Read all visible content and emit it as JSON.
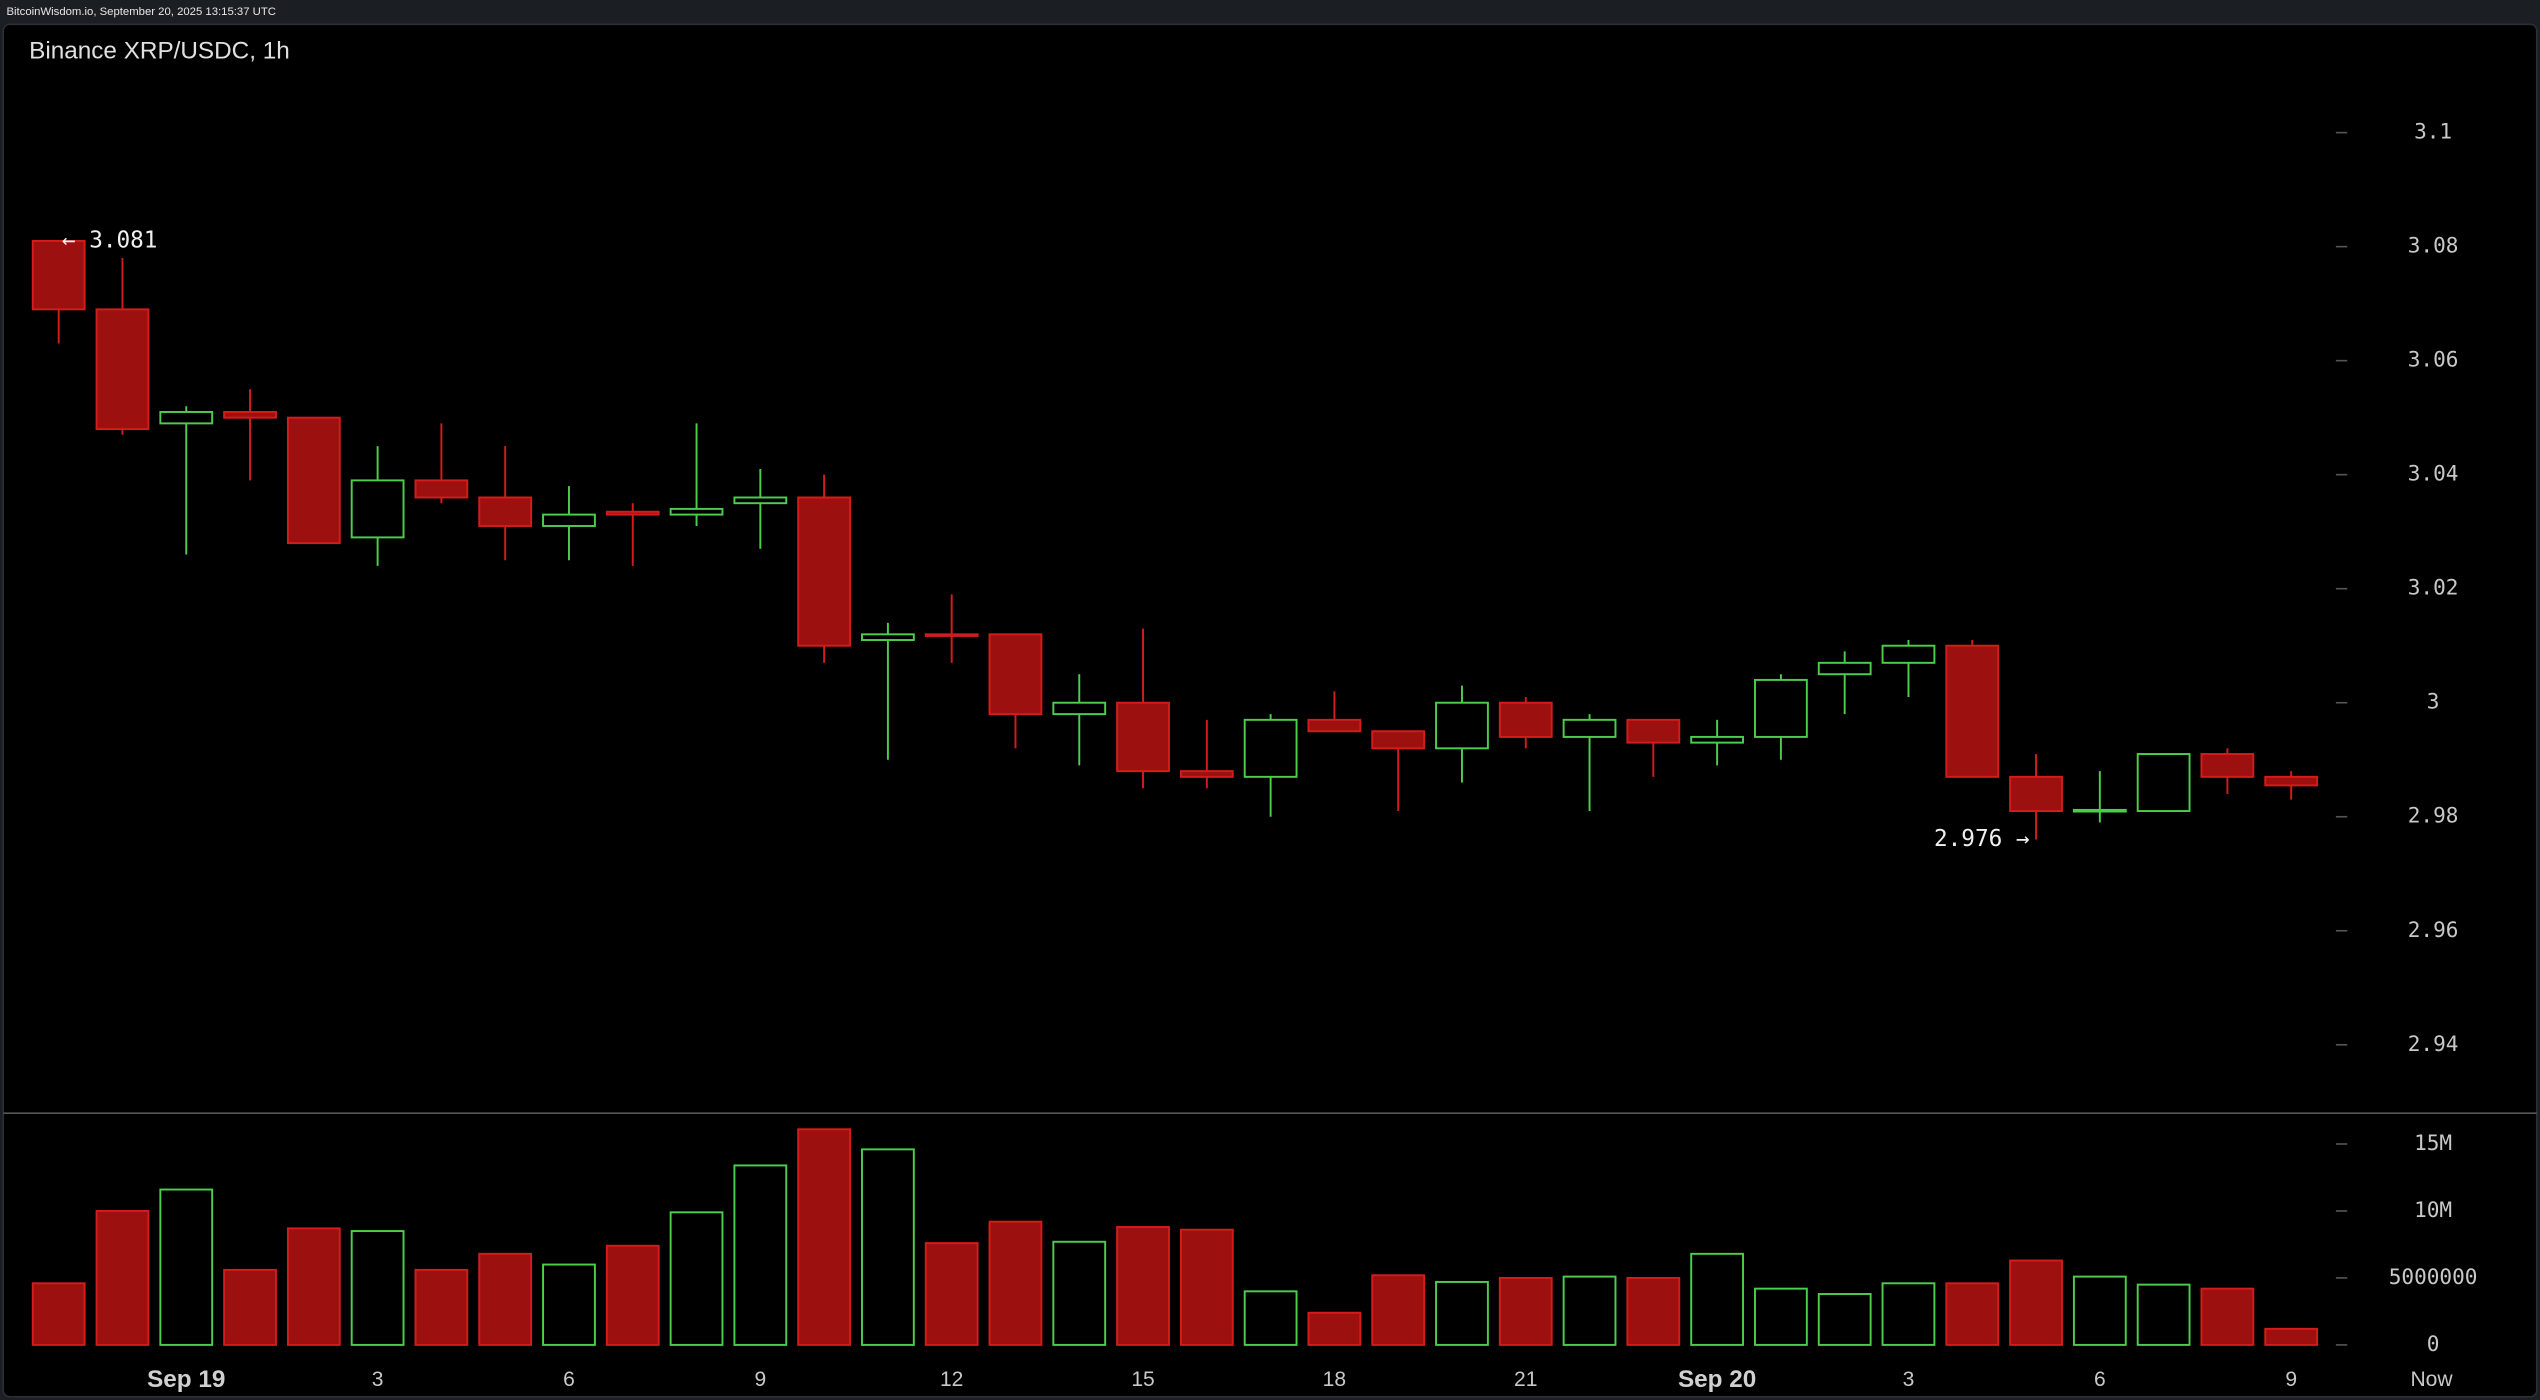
{
  "header": "BitcoinWisdom.io, September 20, 2025 13:15:37 UTC",
  "chart_data": {
    "type": "candlestick",
    "title": "Binance XRP/USDC, 1h",
    "up_color": "#4ccd4c",
    "down_color": "#d41c1c",
    "down_fill": "#9c1010",
    "xlim": [
      -0.92,
      35.65
    ],
    "xticks": [
      {
        "value": 2,
        "label": "Sep 19"
      },
      {
        "value": 5,
        "label": "3"
      },
      {
        "value": 8,
        "label": "6"
      },
      {
        "value": 11,
        "label": "9"
      },
      {
        "value": 14,
        "label": "12"
      },
      {
        "value": 17,
        "label": "15"
      },
      {
        "value": 20,
        "label": "18"
      },
      {
        "value": 23,
        "label": "21"
      },
      {
        "value": 26,
        "label": "Sep 20"
      },
      {
        "value": 29,
        "label": "3"
      },
      {
        "value": 32,
        "label": "6"
      },
      {
        "value": 35,
        "label": "9"
      },
      {
        "value": 37.2,
        "label": "Now"
      }
    ],
    "ylim": [
      2.928,
      3.119
    ],
    "yticks": [
      2.94,
      2.96,
      2.98,
      3,
      3.02,
      3.04,
      3.06,
      3.08,
      3.1
    ],
    "candles": [
      {
        "open": 3.081,
        "high": 3.081,
        "low": 3.063,
        "close": 3.069
      },
      {
        "open": 3.069,
        "high": 3.078,
        "low": 3.047,
        "close": 3.048
      },
      {
        "open": 3.049,
        "high": 3.052,
        "low": 3.026,
        "close": 3.051
      },
      {
        "open": 3.051,
        "high": 3.055,
        "low": 3.039,
        "close": 3.05
      },
      {
        "open": 3.05,
        "high": 3.05,
        "low": 3.028,
        "close": 3.028
      },
      {
        "open": 3.029,
        "high": 3.045,
        "low": 3.024,
        "close": 3.039
      },
      {
        "open": 3.039,
        "high": 3.049,
        "low": 3.035,
        "close": 3.036
      },
      {
        "open": 3.036,
        "high": 3.045,
        "low": 3.025,
        "close": 3.031
      },
      {
        "open": 3.031,
        "high": 3.038,
        "low": 3.025,
        "close": 3.033
      },
      {
        "open": 3.0335,
        "high": 3.035,
        "low": 3.024,
        "close": 3.033
      },
      {
        "open": 3.033,
        "high": 3.049,
        "low": 3.031,
        "close": 3.034
      },
      {
        "open": 3.035,
        "high": 3.041,
        "low": 3.027,
        "close": 3.036
      },
      {
        "open": 3.036,
        "high": 3.04,
        "low": 3.007,
        "close": 3.01
      },
      {
        "open": 3.011,
        "high": 3.014,
        "low": 2.99,
        "close": 3.012
      },
      {
        "open": 3.012,
        "high": 3.019,
        "low": 3.007,
        "close": 3.0118
      },
      {
        "open": 3.012,
        "high": 3.012,
        "low": 2.992,
        "close": 2.998
      },
      {
        "open": 2.998,
        "high": 3.005,
        "low": 2.989,
        "close": 3.0
      },
      {
        "open": 3.0,
        "high": 3.013,
        "low": 2.985,
        "close": 2.988
      },
      {
        "open": 2.988,
        "high": 2.997,
        "low": 2.985,
        "close": 2.987
      },
      {
        "open": 2.987,
        "high": 2.998,
        "low": 2.98,
        "close": 2.997
      },
      {
        "open": 2.997,
        "high": 3.002,
        "low": 2.995,
        "close": 2.995
      },
      {
        "open": 2.995,
        "high": 2.995,
        "low": 2.981,
        "close": 2.992
      },
      {
        "open": 2.992,
        "high": 3.003,
        "low": 2.986,
        "close": 3.0
      },
      {
        "open": 3.0,
        "high": 3.001,
        "low": 2.992,
        "close": 2.994
      },
      {
        "open": 2.994,
        "high": 2.998,
        "low": 2.981,
        "close": 2.997
      },
      {
        "open": 2.997,
        "high": 2.997,
        "low": 2.987,
        "close": 2.993
      },
      {
        "open": 2.993,
        "high": 2.997,
        "low": 2.989,
        "close": 2.994
      },
      {
        "open": 2.994,
        "high": 3.005,
        "low": 2.99,
        "close": 3.004
      },
      {
        "open": 3.005,
        "high": 3.009,
        "low": 2.998,
        "close": 3.007
      },
      {
        "open": 3.007,
        "high": 3.011,
        "low": 3.001,
        "close": 3.01
      },
      {
        "open": 3.01,
        "high": 3.011,
        "low": 2.987,
        "close": 2.987
      },
      {
        "open": 2.987,
        "high": 2.991,
        "low": 2.976,
        "close": 2.981
      },
      {
        "open": 2.981,
        "high": 2.988,
        "low": 2.979,
        "close": 2.9812
      },
      {
        "open": 2.981,
        "high": 2.991,
        "low": 2.981,
        "close": 2.991
      },
      {
        "open": 2.991,
        "high": 2.992,
        "low": 2.984,
        "close": 2.987
      },
      {
        "open": 2.987,
        "high": 2.988,
        "low": 2.983,
        "close": 2.9855
      }
    ],
    "annotations": [
      {
        "x": 0,
        "value": 3.081,
        "label": "← 3.081"
      },
      {
        "x": 31,
        "value": 2.976,
        "label": "2.976 →"
      }
    ],
    "volume": {
      "ylim": [
        0,
        17300000
      ],
      "yticks": [
        0,
        5000000,
        {
          "value": 10000000,
          "label": "10M"
        },
        {
          "value": 15000000,
          "label": "15M"
        }
      ],
      "values": [
        4600000,
        10000000,
        11600000,
        5600000,
        8700000,
        8500000,
        5600000,
        6800000,
        6000000,
        7400000,
        9900000,
        13400000,
        16100000,
        14600000,
        7600000,
        9200000,
        7700000,
        8800000,
        8600000,
        4000000,
        2400000,
        5200000,
        4700000,
        5000000,
        5100000,
        5000000,
        6800000,
        4200000,
        3800000,
        4600000,
        4600000,
        6300000,
        5100000,
        4500000,
        4200000,
        1200000
      ]
    }
  }
}
